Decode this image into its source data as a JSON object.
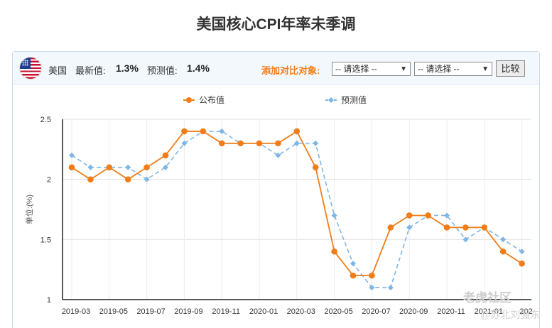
{
  "page": {
    "title": "美国核心CPI年率未季调"
  },
  "toolbar": {
    "country": "美国",
    "latest_label": "最新值:",
    "latest_value": "1.3%",
    "forecast_label": "预测值:",
    "forecast_value": "1.4%",
    "compare_label": "添加对比对象:",
    "select1": "-- 请选择 --",
    "select2": "-- 请选择 --",
    "compare_button": "比较"
  },
  "watermarks": {
    "site": "老虎社区",
    "author": "@苏北刘强东"
  },
  "colors": {
    "published": "#f07d18",
    "forecast": "#7fb6e3",
    "accent": "#f07d18",
    "toolbar_bg": "#f3f8fd"
  },
  "chart_data": {
    "type": "line",
    "ylabel": "单位:(%)",
    "ylim": [
      1,
      2.5
    ],
    "yticks": [
      "1",
      "1.5",
      "2",
      "2.5"
    ],
    "grid": true,
    "legend_position": "top",
    "x": [
      "2019-03",
      "2019-04",
      "2019-05",
      "2019-06",
      "2019-07",
      "2019-08",
      "2019-09",
      "2019-10",
      "2019-11",
      "2019-12",
      "2020-01",
      "2020-02",
      "2020-03",
      "2020-04",
      "2020-05",
      "2020-06",
      "2020-07",
      "2020-08",
      "2020-09",
      "2020-10",
      "2020-11",
      "2020-12",
      "2021-01",
      "2021-02",
      "2021-03"
    ],
    "xtick_labels": [
      "2019-03",
      "2019-05",
      "2019-07",
      "2019-09",
      "2019-11",
      "2020-01",
      "2020-03",
      "2020-05",
      "2020-07",
      "2020-09",
      "2020-11",
      "2021-01",
      "202"
    ],
    "series": [
      {
        "name": "公布值",
        "style": "solid-circle",
        "values": [
          2.1,
          2.0,
          2.1,
          2.0,
          2.1,
          2.2,
          2.4,
          2.4,
          2.3,
          2.3,
          2.3,
          2.3,
          2.4,
          2.1,
          1.4,
          1.2,
          1.2,
          1.6,
          1.7,
          1.7,
          1.6,
          1.6,
          1.6,
          1.4,
          1.3
        ]
      },
      {
        "name": "预测值",
        "style": "dashed-diamond",
        "values": [
          2.2,
          2.1,
          2.1,
          2.1,
          2.0,
          2.1,
          2.3,
          2.4,
          2.4,
          2.3,
          2.3,
          2.2,
          2.3,
          2.3,
          1.7,
          1.3,
          1.1,
          1.1,
          1.6,
          1.7,
          1.7,
          1.5,
          1.6,
          1.5,
          1.4
        ]
      }
    ]
  }
}
